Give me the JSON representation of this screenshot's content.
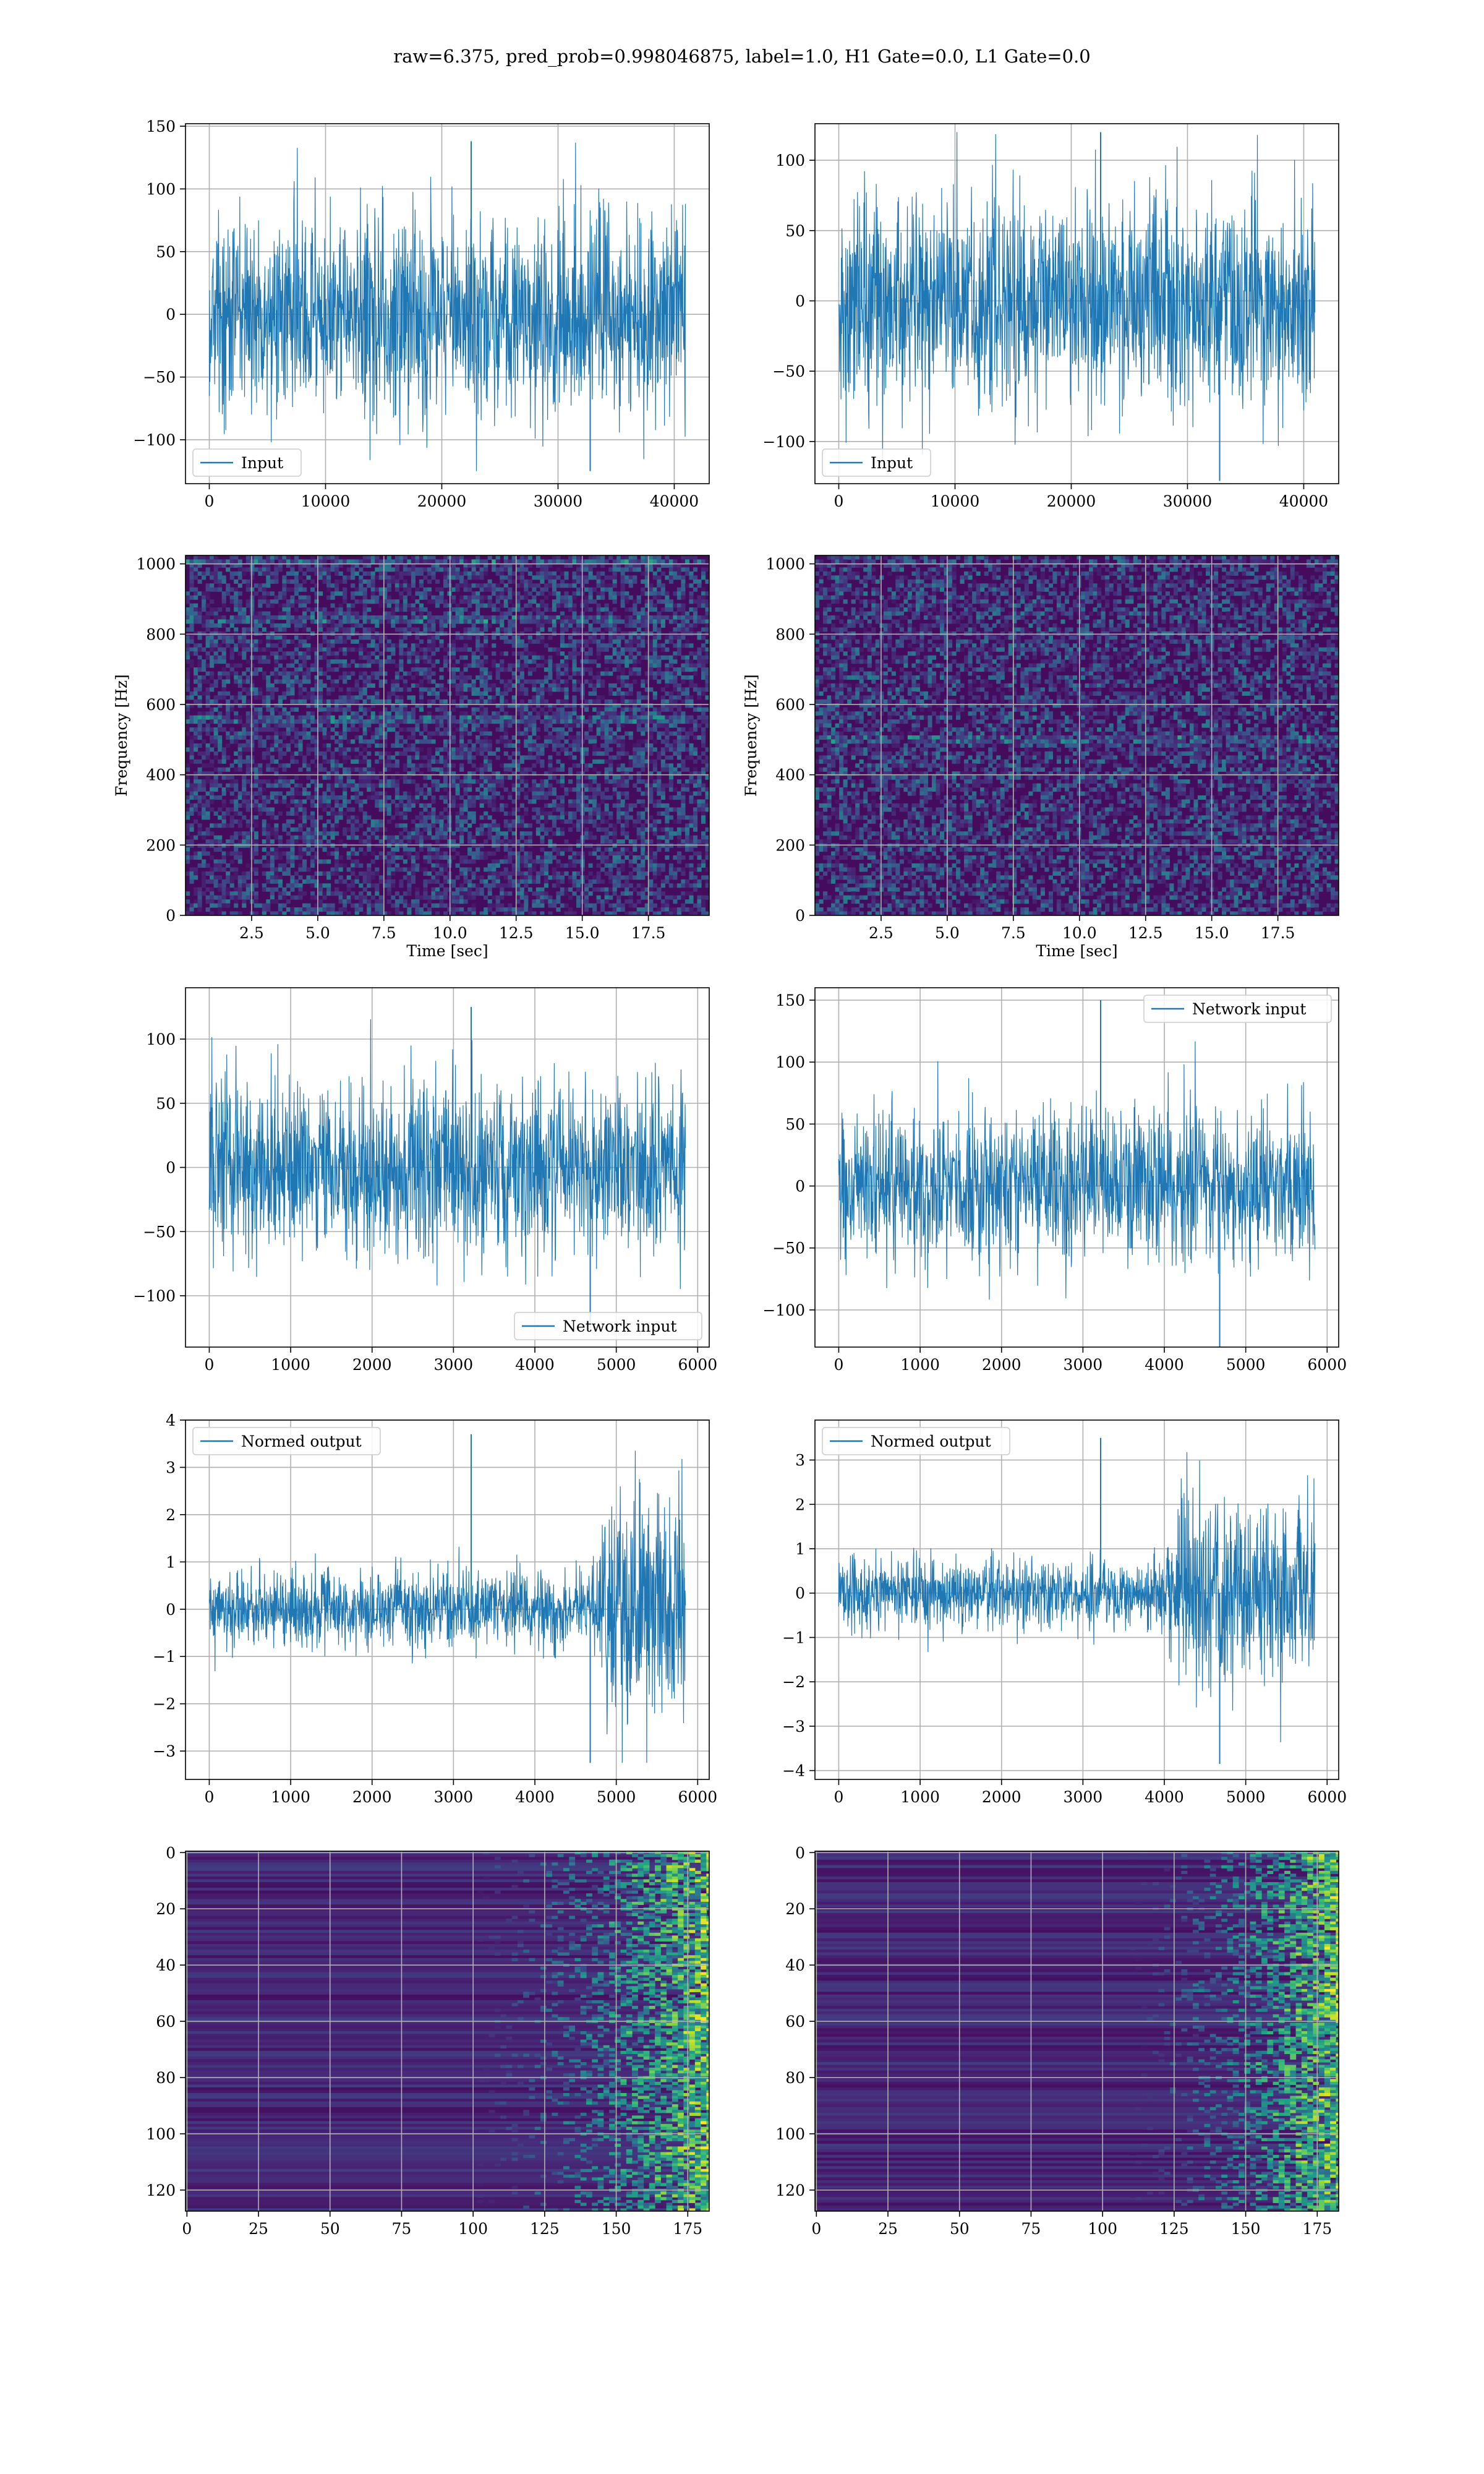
{
  "figure": {
    "suptitle": "raw=6.375, pred_prob=0.998046875, label=1.0, H1 Gate=0.0, L1 Gate=0.0"
  },
  "colors": {
    "line": "#1f77b4",
    "grid": "#b0b0b0",
    "axes": "#000000",
    "viridis": [
      "#440154",
      "#482878",
      "#3e4989",
      "#31688e",
      "#26828e",
      "#1f9e89",
      "#35b779",
      "#6ece58",
      "#b5de2b",
      "#fde725"
    ]
  },
  "chart_data": [
    {
      "id": "h1_input",
      "type": "line",
      "column": 0,
      "row": 0,
      "x_range": [
        0,
        40960
      ],
      "xlim": [
        -2048,
        43008
      ],
      "ylim": [
        -135,
        152
      ],
      "xticks": [
        0,
        10000,
        20000,
        30000,
        40000
      ],
      "xtick_labels": [
        "0",
        "10000",
        "20000",
        "30000",
        "40000"
      ],
      "yticks": [
        -100,
        -50,
        0,
        50,
        100,
        150
      ],
      "ytick_labels": [
        "−100",
        "−50",
        "0",
        "50",
        "100",
        "150"
      ],
      "series": [
        {
          "name": "Input",
          "amplitude": 40,
          "max": 138,
          "min": -125
        }
      ],
      "legend": "lower-left",
      "xlabel": "",
      "ylabel": ""
    },
    {
      "id": "l1_input",
      "type": "line",
      "column": 1,
      "row": 0,
      "x_range": [
        0,
        40960
      ],
      "xlim": [
        -2048,
        43008
      ],
      "ylim": [
        -130,
        126
      ],
      "xticks": [
        0,
        10000,
        20000,
        30000,
        40000
      ],
      "xtick_labels": [
        "0",
        "10000",
        "20000",
        "30000",
        "40000"
      ],
      "yticks": [
        -100,
        -50,
        0,
        50,
        100
      ],
      "ytick_labels": [
        "−100",
        "−50",
        "0",
        "50",
        "100"
      ],
      "series": [
        {
          "name": "Input",
          "amplitude": 37,
          "max": 120,
          "min": -128
        }
      ],
      "legend": "lower-left",
      "xlabel": "",
      "ylabel": ""
    },
    {
      "id": "h1_spectrogram",
      "type": "heatmap",
      "column": 0,
      "row": 1,
      "xlim": [
        0,
        19.8
      ],
      "ylim": [
        0,
        1024
      ],
      "xticks": [
        2.5,
        5.0,
        7.5,
        10.0,
        12.5,
        15.0,
        17.5
      ],
      "xtick_labels": [
        "2.5",
        "5.0",
        "7.5",
        "10.0",
        "12.5",
        "15.0",
        "17.5"
      ],
      "yticks": [
        0,
        200,
        400,
        600,
        800,
        1000
      ],
      "ytick_labels": [
        "0",
        "200",
        "400",
        "600",
        "800",
        "1000"
      ],
      "xlabel": "Time [sec]",
      "ylabel": "Frequency [Hz]",
      "bright_bands_hz": [
        845,
        560,
        1005
      ],
      "colormap": "viridis"
    },
    {
      "id": "l1_spectrogram",
      "type": "heatmap",
      "column": 1,
      "row": 1,
      "xlim": [
        0,
        19.8
      ],
      "ylim": [
        0,
        1024
      ],
      "xticks": [
        2.5,
        5.0,
        7.5,
        10.0,
        12.5,
        15.0,
        17.5
      ],
      "xtick_labels": [
        "2.5",
        "5.0",
        "7.5",
        "10.0",
        "12.5",
        "15.0",
        "17.5"
      ],
      "yticks": [
        0,
        200,
        400,
        600,
        800,
        1000
      ],
      "ytick_labels": [
        "0",
        "200",
        "400",
        "600",
        "800",
        "1000"
      ],
      "xlabel": "Time [sec]",
      "ylabel": "Frequency [Hz]",
      "bright_bands_hz": [
        500
      ],
      "colormap": "viridis"
    },
    {
      "id": "h1_network_input",
      "type": "line",
      "column": 0,
      "row": 2,
      "x_range": [
        0,
        5850
      ],
      "xlim": [
        -292,
        6142
      ],
      "ylim": [
        -140,
        140
      ],
      "xticks": [
        0,
        1000,
        2000,
        3000,
        4000,
        5000,
        6000
      ],
      "xtick_labels": [
        "0",
        "1000",
        "2000",
        "3000",
        "4000",
        "5000",
        "6000"
      ],
      "yticks": [
        -100,
        -50,
        0,
        50,
        100
      ],
      "ytick_labels": [
        "−100",
        "−50",
        "0",
        "50",
        "100"
      ],
      "series": [
        {
          "name": "Network input",
          "amplitude": 34,
          "max": 125,
          "min": -125
        }
      ],
      "legend": "lower-right",
      "xlabel": "",
      "ylabel": ""
    },
    {
      "id": "l1_network_input",
      "type": "line",
      "column": 1,
      "row": 2,
      "x_range": [
        0,
        5850
      ],
      "xlim": [
        -292,
        6142
      ],
      "ylim": [
        -130,
        160
      ],
      "xticks": [
        0,
        1000,
        2000,
        3000,
        4000,
        5000,
        6000
      ],
      "xtick_labels": [
        "0",
        "1000",
        "2000",
        "3000",
        "4000",
        "5000",
        "6000"
      ],
      "yticks": [
        -100,
        -50,
        0,
        50,
        100,
        150
      ],
      "ytick_labels": [
        "−100",
        "−50",
        "0",
        "50",
        "100",
        "150"
      ],
      "series": [
        {
          "name": "Network input",
          "amplitude": 30,
          "max": 150,
          "min": -130
        }
      ],
      "legend": "upper-right",
      "xlabel": "",
      "ylabel": ""
    },
    {
      "id": "h1_normed_output",
      "type": "line",
      "column": 0,
      "row": 3,
      "x_range": [
        0,
        5850
      ],
      "xlim": [
        -292,
        6142
      ],
      "ylim": [
        -3.6,
        4.0
      ],
      "xticks": [
        0,
        1000,
        2000,
        3000,
        4000,
        5000,
        6000
      ],
      "xtick_labels": [
        "0",
        "1000",
        "2000",
        "3000",
        "4000",
        "5000",
        "6000"
      ],
      "yticks": [
        -3,
        -2,
        -1,
        0,
        1,
        2,
        3,
        4
      ],
      "ytick_labels": [
        "−3",
        "−2",
        "−1",
        "0",
        "1",
        "2",
        "3",
        "4"
      ],
      "series": [
        {
          "name": "Normed output",
          "amplitude": 0.4,
          "max": 3.7,
          "min": -3.25,
          "burst_start": 4700,
          "burst_end": 5850,
          "burst_amplitude": 1.25
        }
      ],
      "legend": "upper-left",
      "xlabel": "",
      "ylabel": ""
    },
    {
      "id": "l1_normed_output",
      "type": "line",
      "column": 1,
      "row": 3,
      "x_range": [
        0,
        5850
      ],
      "xlim": [
        -292,
        6142
      ],
      "ylim": [
        -4.2,
        3.9
      ],
      "xticks": [
        0,
        1000,
        2000,
        3000,
        4000,
        5000,
        6000
      ],
      "xtick_labels": [
        "0",
        "1000",
        "2000",
        "3000",
        "4000",
        "5000",
        "6000"
      ],
      "yticks": [
        -4,
        -3,
        -2,
        -1,
        0,
        1,
        2,
        3
      ],
      "ytick_labels": [
        "−4",
        "−3",
        "−2",
        "−1",
        "0",
        "1",
        "2",
        "3"
      ],
      "series": [
        {
          "name": "Normed output",
          "amplitude": 0.4,
          "max": 3.5,
          "min": -3.85,
          "burst_start": 4000,
          "burst_end": 5850,
          "burst_amplitude": 1.0
        }
      ],
      "legend": "upper-left",
      "xlabel": "",
      "ylabel": ""
    },
    {
      "id": "h1_feature_map",
      "type": "heatmap",
      "column": 0,
      "row": 4,
      "xlim": [
        -0.5,
        182.5
      ],
      "ylim": [
        127.5,
        -0.5
      ],
      "rows": 128,
      "cols": 183,
      "xticks": [
        0,
        25,
        50,
        75,
        100,
        125,
        150,
        175
      ],
      "xtick_labels": [
        "0",
        "25",
        "50",
        "75",
        "100",
        "125",
        "150",
        "175"
      ],
      "yticks": [
        0,
        20,
        40,
        60,
        80,
        100,
        120
      ],
      "ytick_labels": [
        "0",
        "20",
        "40",
        "60",
        "80",
        "100",
        "120"
      ],
      "activation_onset_col": 100,
      "colormap": "viridis",
      "xlabel": "",
      "ylabel": ""
    },
    {
      "id": "l1_feature_map",
      "type": "heatmap",
      "column": 1,
      "row": 4,
      "xlim": [
        -0.5,
        182.5
      ],
      "ylim": [
        127.5,
        -0.5
      ],
      "rows": 128,
      "cols": 183,
      "xticks": [
        0,
        25,
        50,
        75,
        100,
        125,
        150,
        175
      ],
      "xtick_labels": [
        "0",
        "25",
        "50",
        "75",
        "100",
        "125",
        "150",
        "175"
      ],
      "yticks": [
        0,
        20,
        40,
        60,
        80,
        100,
        120
      ],
      "ytick_labels": [
        "0",
        "20",
        "40",
        "60",
        "80",
        "100",
        "120"
      ],
      "activation_onset_col": 110,
      "colormap": "viridis",
      "xlabel": "",
      "ylabel": ""
    }
  ]
}
